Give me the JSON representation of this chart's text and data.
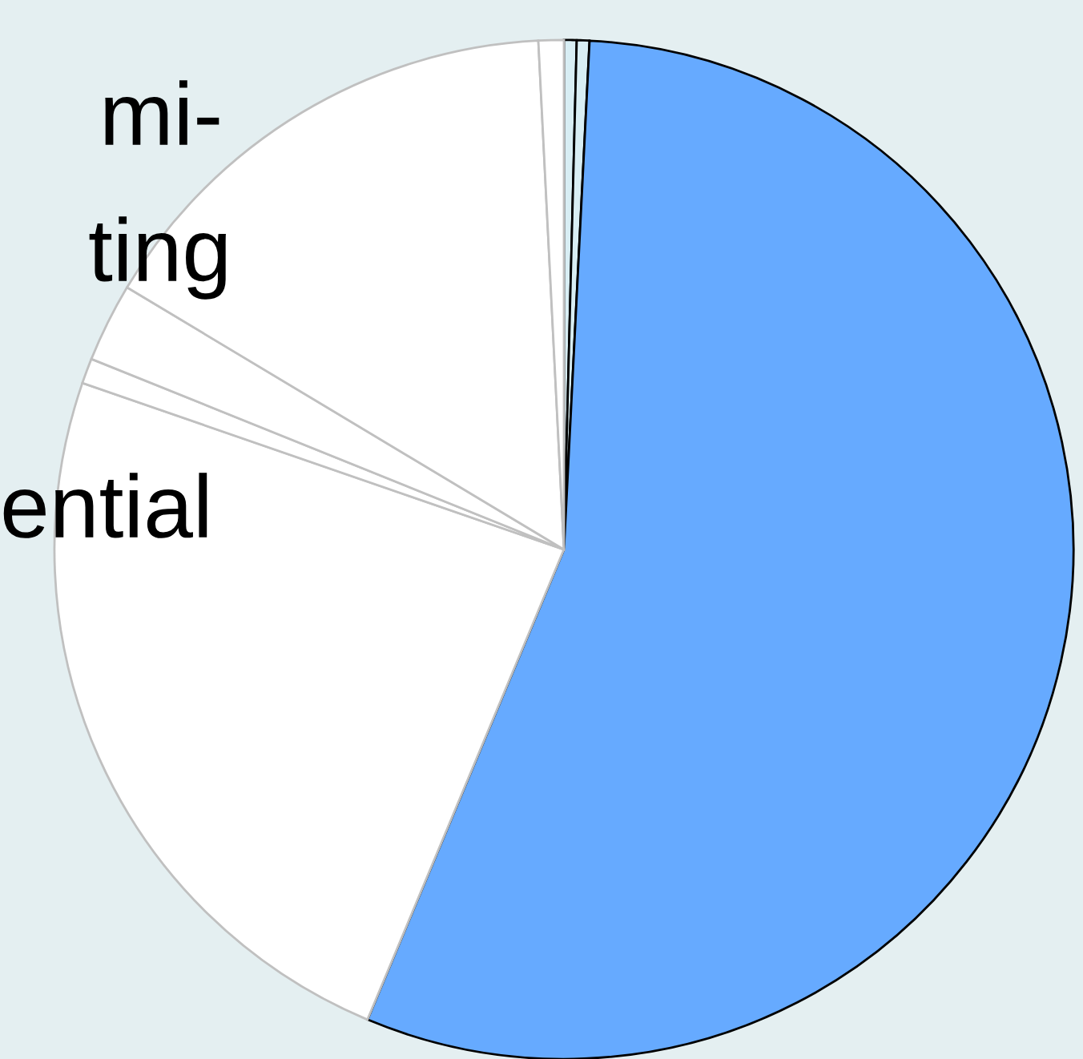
{
  "chart_data": {
    "type": "pie",
    "categories": [
      null,
      null,
      null,
      null,
      null,
      null,
      null,
      null
    ],
    "values": [
      0.4,
      0.4,
      55.5,
      24.0,
      0.8,
      2.5,
      15.6,
      0.8
    ],
    "colors": [
      "#d8eef4",
      "#d8eef4",
      "#66aaff",
      "#ffffff",
      "#ffffff",
      "#ffffff",
      "#ffffff",
      "#ffffff"
    ],
    "annotations": [
      "mi-",
      "ting",
      "ential"
    ]
  }
}
